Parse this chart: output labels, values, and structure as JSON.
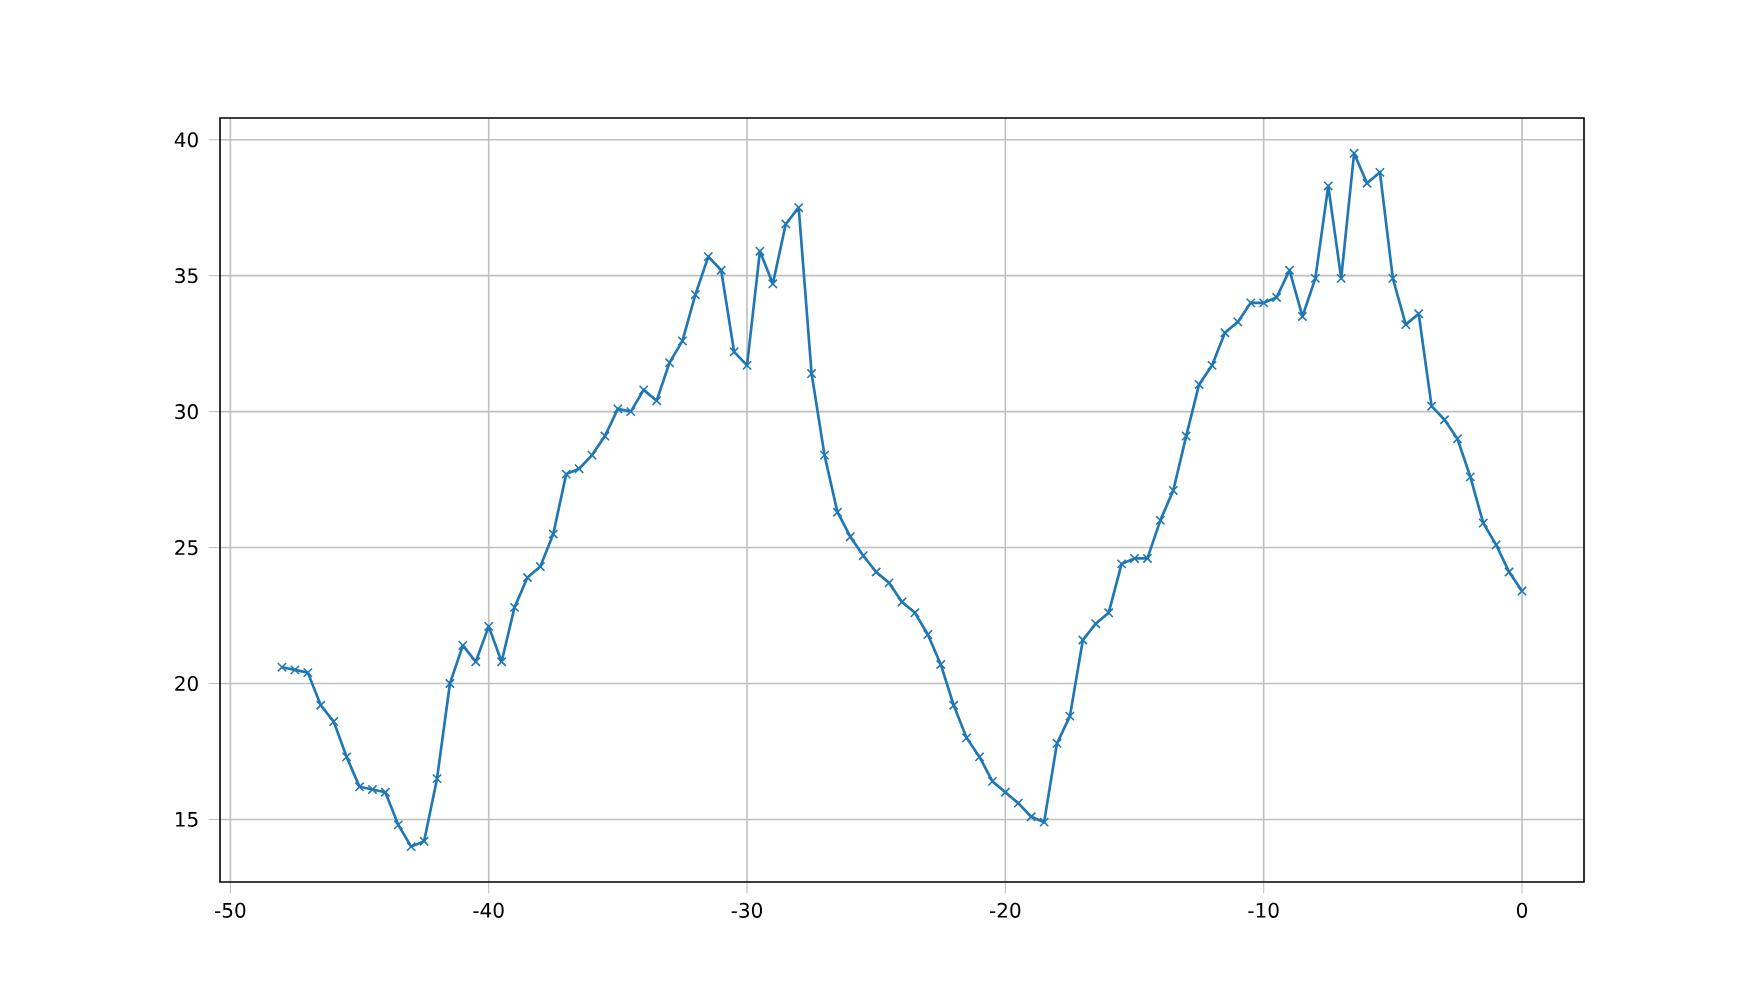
{
  "chart_data": {
    "type": "line",
    "color": "#1f77b4",
    "marker": "cross",
    "line_style": "solid",
    "grid": true,
    "x": [
      -48,
      -47.5,
      -47,
      -46.5,
      -46,
      -45.5,
      -45,
      -44.5,
      -44,
      -43.5,
      -43,
      -42.5,
      -42,
      -41.5,
      -41,
      -40.5,
      -40,
      -39.5,
      -39,
      -38.5,
      -38,
      -37.5,
      -37,
      -36.5,
      -36,
      -35.5,
      -35,
      -34.5,
      -34,
      -33.5,
      -33,
      -32.5,
      -32,
      -31.5,
      -31,
      -30.5,
      -30,
      -29.5,
      -29,
      -28.5,
      -28,
      -27.5,
      -27,
      -26.5,
      -26,
      -25.5,
      -25,
      -24.5,
      -24,
      -23.5,
      -23,
      -22.5,
      -22,
      -21.5,
      -21,
      -20.5,
      -20,
      -19.5,
      -19,
      -18.5,
      -18,
      -17.5,
      -17,
      -16.5,
      -16,
      -15.5,
      -15,
      -14.5,
      -14,
      -13.5,
      -13,
      -12.5,
      -12,
      -11.5,
      -11,
      -10.5,
      -10,
      -9.5,
      -9,
      -8.5,
      -8,
      -7.5,
      -7,
      -6.5,
      -6,
      -5.5,
      -5,
      -4.5,
      -4,
      -3.5,
      -3,
      -2.5,
      -2,
      -1.5,
      -1,
      -0.5,
      0
    ],
    "values": [
      20.6,
      20.5,
      20.4,
      19.2,
      18.6,
      17.3,
      16.2,
      16.1,
      16.0,
      14.8,
      14.0,
      14.2,
      16.5,
      20.0,
      21.4,
      20.8,
      22.1,
      20.8,
      22.8,
      23.9,
      24.3,
      25.5,
      27.7,
      27.9,
      28.4,
      29.1,
      30.1,
      30.0,
      30.8,
      30.4,
      31.8,
      32.6,
      34.3,
      35.7,
      35.2,
      32.2,
      31.7,
      35.9,
      34.7,
      36.9,
      37.5,
      31.4,
      28.4,
      26.3,
      25.4,
      24.7,
      24.1,
      23.7,
      23.0,
      22.6,
      21.8,
      20.7,
      19.2,
      18.0,
      17.3,
      16.4,
      16.0,
      15.6,
      15.1,
      14.9,
      17.8,
      18.8,
      21.6,
      22.2,
      22.6,
      24.4,
      24.6,
      24.6,
      26.0,
      27.1,
      29.1,
      31.0,
      31.7,
      32.9,
      33.3,
      34.0,
      34.0,
      34.2,
      35.2,
      33.5,
      34.9,
      38.3,
      34.9,
      39.5,
      38.4,
      38.8,
      34.9,
      33.2,
      33.6,
      30.2,
      29.7,
      29.0,
      27.6,
      25.9,
      25.1,
      24.1,
      23.4
    ],
    "xlim": [
      -50.4,
      2.4
    ],
    "ylim": [
      12.7,
      40.8
    ],
    "xticks": [
      -50,
      -40,
      -30,
      -20,
      -10,
      0
    ],
    "yticks": [
      15,
      20,
      25,
      30,
      35,
      40
    ]
  }
}
